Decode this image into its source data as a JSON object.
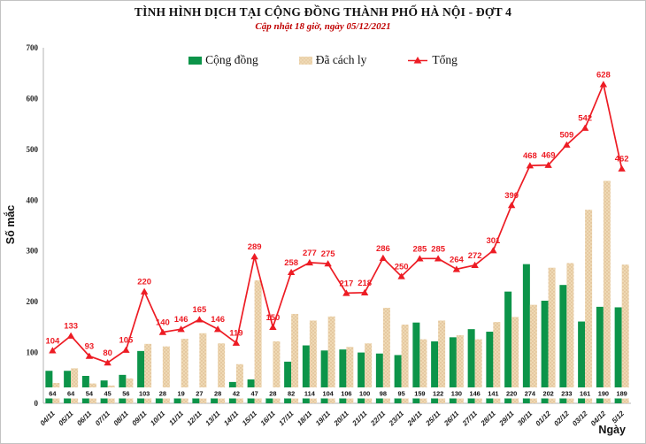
{
  "chart_data": {
    "type": "combo (bar + line)",
    "title": "TÌNH HÌNH DỊCH TẠI CỘNG ĐỒNG THÀNH PHỐ HÀ NỘI - ĐỢT 4",
    "subtitle": "Cập nhật 18 giờ, ngày 05/12/2021",
    "xlabel": "Ngày",
    "ylabel": "Số mắc",
    "ylim": [
      0,
      700
    ],
    "yticks": [
      0,
      100,
      200,
      300,
      400,
      500,
      600,
      700
    ],
    "grid": false,
    "legend_position": "top-center",
    "categories": [
      "04/11",
      "05/11",
      "06/11",
      "07/11",
      "08/11",
      "09/11",
      "10/11",
      "11/11",
      "12/11",
      "13/11",
      "14/11",
      "15/11",
      "16/11",
      "17/11",
      "18/11",
      "19/11",
      "20/11",
      "21/11",
      "22/11",
      "23/11",
      "24/11",
      "25/11",
      "26/11",
      "27/11",
      "28/11",
      "29/11",
      "30/11",
      "01/12",
      "02/12",
      "03/12",
      "04/12",
      "5/12"
    ],
    "series": [
      {
        "name": "Cộng đồng",
        "type": "bar",
        "color": "#0c9449",
        "labels_shown": "white boxes at bar base",
        "values": [
          64,
          64,
          54,
          45,
          56,
          103,
          28,
          19,
          27,
          28,
          42,
          47,
          28,
          82,
          114,
          104,
          106,
          100,
          98,
          95,
          159,
          122,
          130,
          146,
          141,
          220,
          274,
          202,
          233,
          161,
          190,
          189
        ]
      },
      {
        "name": "Đã cách ly",
        "type": "bar",
        "color": "#efd9b4",
        "pattern": "dotted",
        "pattern_dot_color": "#d8b285",
        "labels_shown": "none (values derived as Tổng - Cộng đồng)",
        "values": [
          40,
          69,
          39,
          35,
          49,
          117,
          112,
          127,
          138,
          118,
          77,
          242,
          122,
          176,
          163,
          171,
          111,
          118,
          188,
          155,
          126,
          163,
          134,
          126,
          160,
          170,
          194,
          267,
          276,
          381,
          438,
          273
        ]
      },
      {
        "name": "Tổng",
        "type": "line",
        "color": "#ed1c24",
        "marker": "triangle",
        "labels_shown": "above points",
        "values": [
          104,
          133,
          93,
          80,
          105,
          220,
          140,
          146,
          165,
          146,
          119,
          289,
          150,
          258,
          277,
          275,
          217,
          218,
          286,
          250,
          285,
          285,
          264,
          272,
          301,
          390,
          468,
          469,
          509,
          542,
          628,
          462
        ]
      }
    ]
  }
}
